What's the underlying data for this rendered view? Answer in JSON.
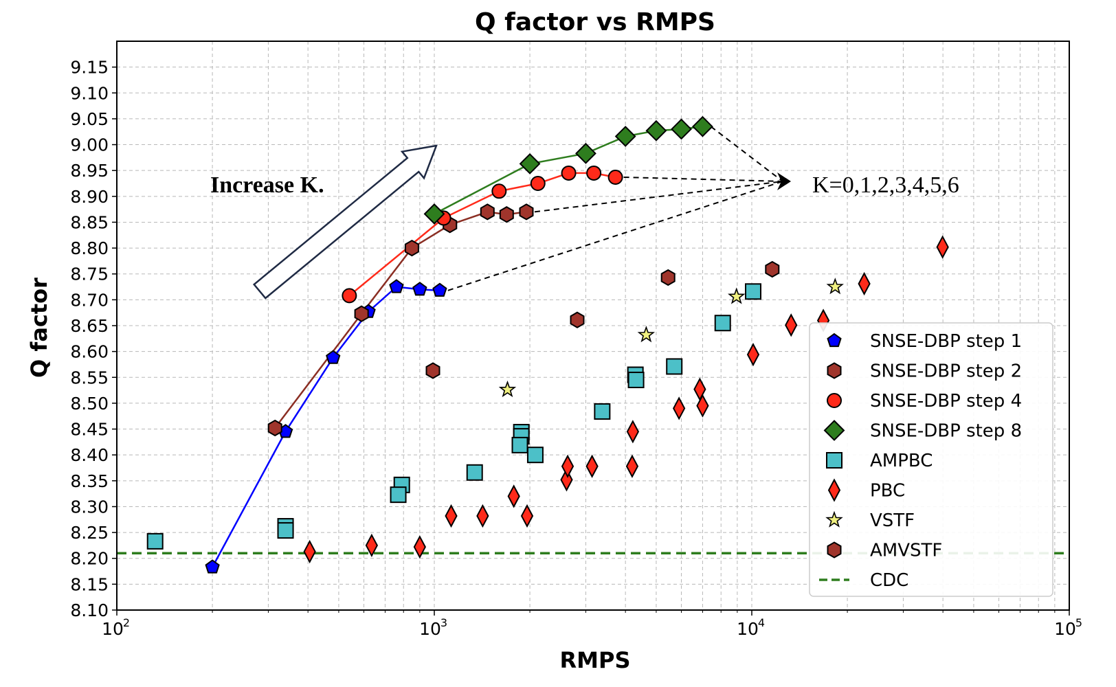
{
  "chart_data": {
    "type": "scatter",
    "title": "Q factor vs RMPS",
    "xlabel": "RMPS",
    "ylabel": "Q factor",
    "xscale": "log",
    "xlim": [
      100,
      100000
    ],
    "ylim": [
      8.1,
      9.2
    ],
    "x_ticks": [
      {
        "value": 100,
        "base": "10",
        "exp": "2"
      },
      {
        "value": 1000,
        "base": "10",
        "exp": "3"
      },
      {
        "value": 10000,
        "base": "10",
        "exp": "4"
      },
      {
        "value": 100000,
        "base": "10",
        "exp": "5"
      }
    ],
    "y_ticks": [
      "8.10",
      "8.15",
      "8.20",
      "8.25",
      "8.30",
      "8.35",
      "8.40",
      "8.45",
      "8.50",
      "8.55",
      "8.60",
      "8.65",
      "8.70",
      "8.75",
      "8.80",
      "8.85",
      "8.90",
      "8.95",
      "9.00",
      "9.05",
      "9.10",
      "9.15"
    ],
    "grid": true,
    "legend_position": "lower-right",
    "series": [
      {
        "name": "SNSE-DBP step 1",
        "marker": "pentagon",
        "color": "#0000ff",
        "line": true,
        "points": [
          [
            200,
            8.183
          ],
          [
            340,
            8.445
          ],
          [
            480,
            8.588
          ],
          [
            620,
            8.677
          ],
          [
            760,
            8.725
          ],
          [
            900,
            8.72
          ],
          [
            1040,
            8.718
          ]
        ]
      },
      {
        "name": "SNSE-DBP step 2",
        "marker": "hexagon",
        "color": "#a0352c",
        "line": true,
        "line_color": "#8b2e23",
        "points": [
          [
            315,
            8.452
          ],
          [
            590,
            8.673
          ],
          [
            850,
            8.8
          ],
          [
            1120,
            8.845
          ],
          [
            1470,
            8.87
          ],
          [
            1690,
            8.865
          ],
          [
            1950,
            8.87
          ]
        ]
      },
      {
        "name": "SNSE-DBP step 4",
        "marker": "circle",
        "color": "#ff2a1a",
        "line": true,
        "points": [
          [
            540,
            8.708
          ],
          [
            1070,
            8.858
          ],
          [
            1600,
            8.91
          ],
          [
            2120,
            8.925
          ],
          [
            2650,
            8.945
          ],
          [
            3180,
            8.945
          ],
          [
            3720,
            8.937
          ]
        ]
      },
      {
        "name": "SNSE-DBP step 8",
        "marker": "diamond",
        "color": "#2e7d1e",
        "line": true,
        "points": [
          [
            1000,
            8.866
          ],
          [
            2000,
            8.963
          ],
          [
            3000,
            8.983
          ],
          [
            4000,
            9.016
          ],
          [
            5000,
            9.027
          ],
          [
            6000,
            9.03
          ],
          [
            7000,
            9.035
          ]
        ]
      },
      {
        "name": "AMPBC",
        "marker": "square",
        "color": "#4cc0c8",
        "line": false,
        "points": [
          [
            132,
            8.233
          ],
          [
            340,
            8.262
          ],
          [
            340,
            8.254
          ],
          [
            790,
            8.342
          ],
          [
            770,
            8.323
          ],
          [
            1340,
            8.366
          ],
          [
            1880,
            8.444
          ],
          [
            1880,
            8.436
          ],
          [
            1860,
            8.419
          ],
          [
            2080,
            8.4
          ],
          [
            3380,
            8.484
          ],
          [
            4300,
            8.555
          ],
          [
            4320,
            8.545
          ],
          [
            5700,
            8.571
          ],
          [
            8100,
            8.655
          ],
          [
            10100,
            8.716
          ]
        ]
      },
      {
        "name": "PBC",
        "marker": "thin-diamond",
        "color": "#ff2a1a",
        "line": false,
        "points": [
          [
            405,
            8.213
          ],
          [
            635,
            8.225
          ],
          [
            900,
            8.222
          ],
          [
            1130,
            8.282
          ],
          [
            1420,
            8.282
          ],
          [
            1780,
            8.32
          ],
          [
            1960,
            8.282
          ],
          [
            2610,
            8.352
          ],
          [
            2630,
            8.378
          ],
          [
            3140,
            8.378
          ],
          [
            4220,
            8.445
          ],
          [
            4200,
            8.378
          ],
          [
            5900,
            8.49
          ],
          [
            6860,
            8.527
          ],
          [
            7000,
            8.495
          ],
          [
            10100,
            8.594
          ],
          [
            13300,
            8.651
          ],
          [
            16800,
            8.66
          ],
          [
            22600,
            8.731
          ],
          [
            39900,
            8.802
          ]
        ]
      },
      {
        "name": "VSTF",
        "marker": "star",
        "color": "#f0f080",
        "line": false,
        "points": [
          [
            1700,
            8.526
          ],
          [
            4650,
            8.632
          ],
          [
            8950,
            8.706
          ],
          [
            18300,
            8.725
          ]
        ]
      },
      {
        "name": "AMVSTF",
        "marker": "hexagon",
        "color": "#a0352c",
        "line": false,
        "points": [
          [
            990,
            8.563
          ],
          [
            2820,
            8.661
          ],
          [
            5450,
            8.743
          ],
          [
            11600,
            8.759
          ]
        ]
      },
      {
        "name": "CDC",
        "marker": "none",
        "color": "#2e7d1e",
        "line": true,
        "dashed": true,
        "value": 8.21
      }
    ],
    "annotations": [
      {
        "text": "Increase K.",
        "style": "bold"
      },
      {
        "text": "K=0,1,2,3,4,5,6",
        "style": "normal"
      }
    ]
  }
}
